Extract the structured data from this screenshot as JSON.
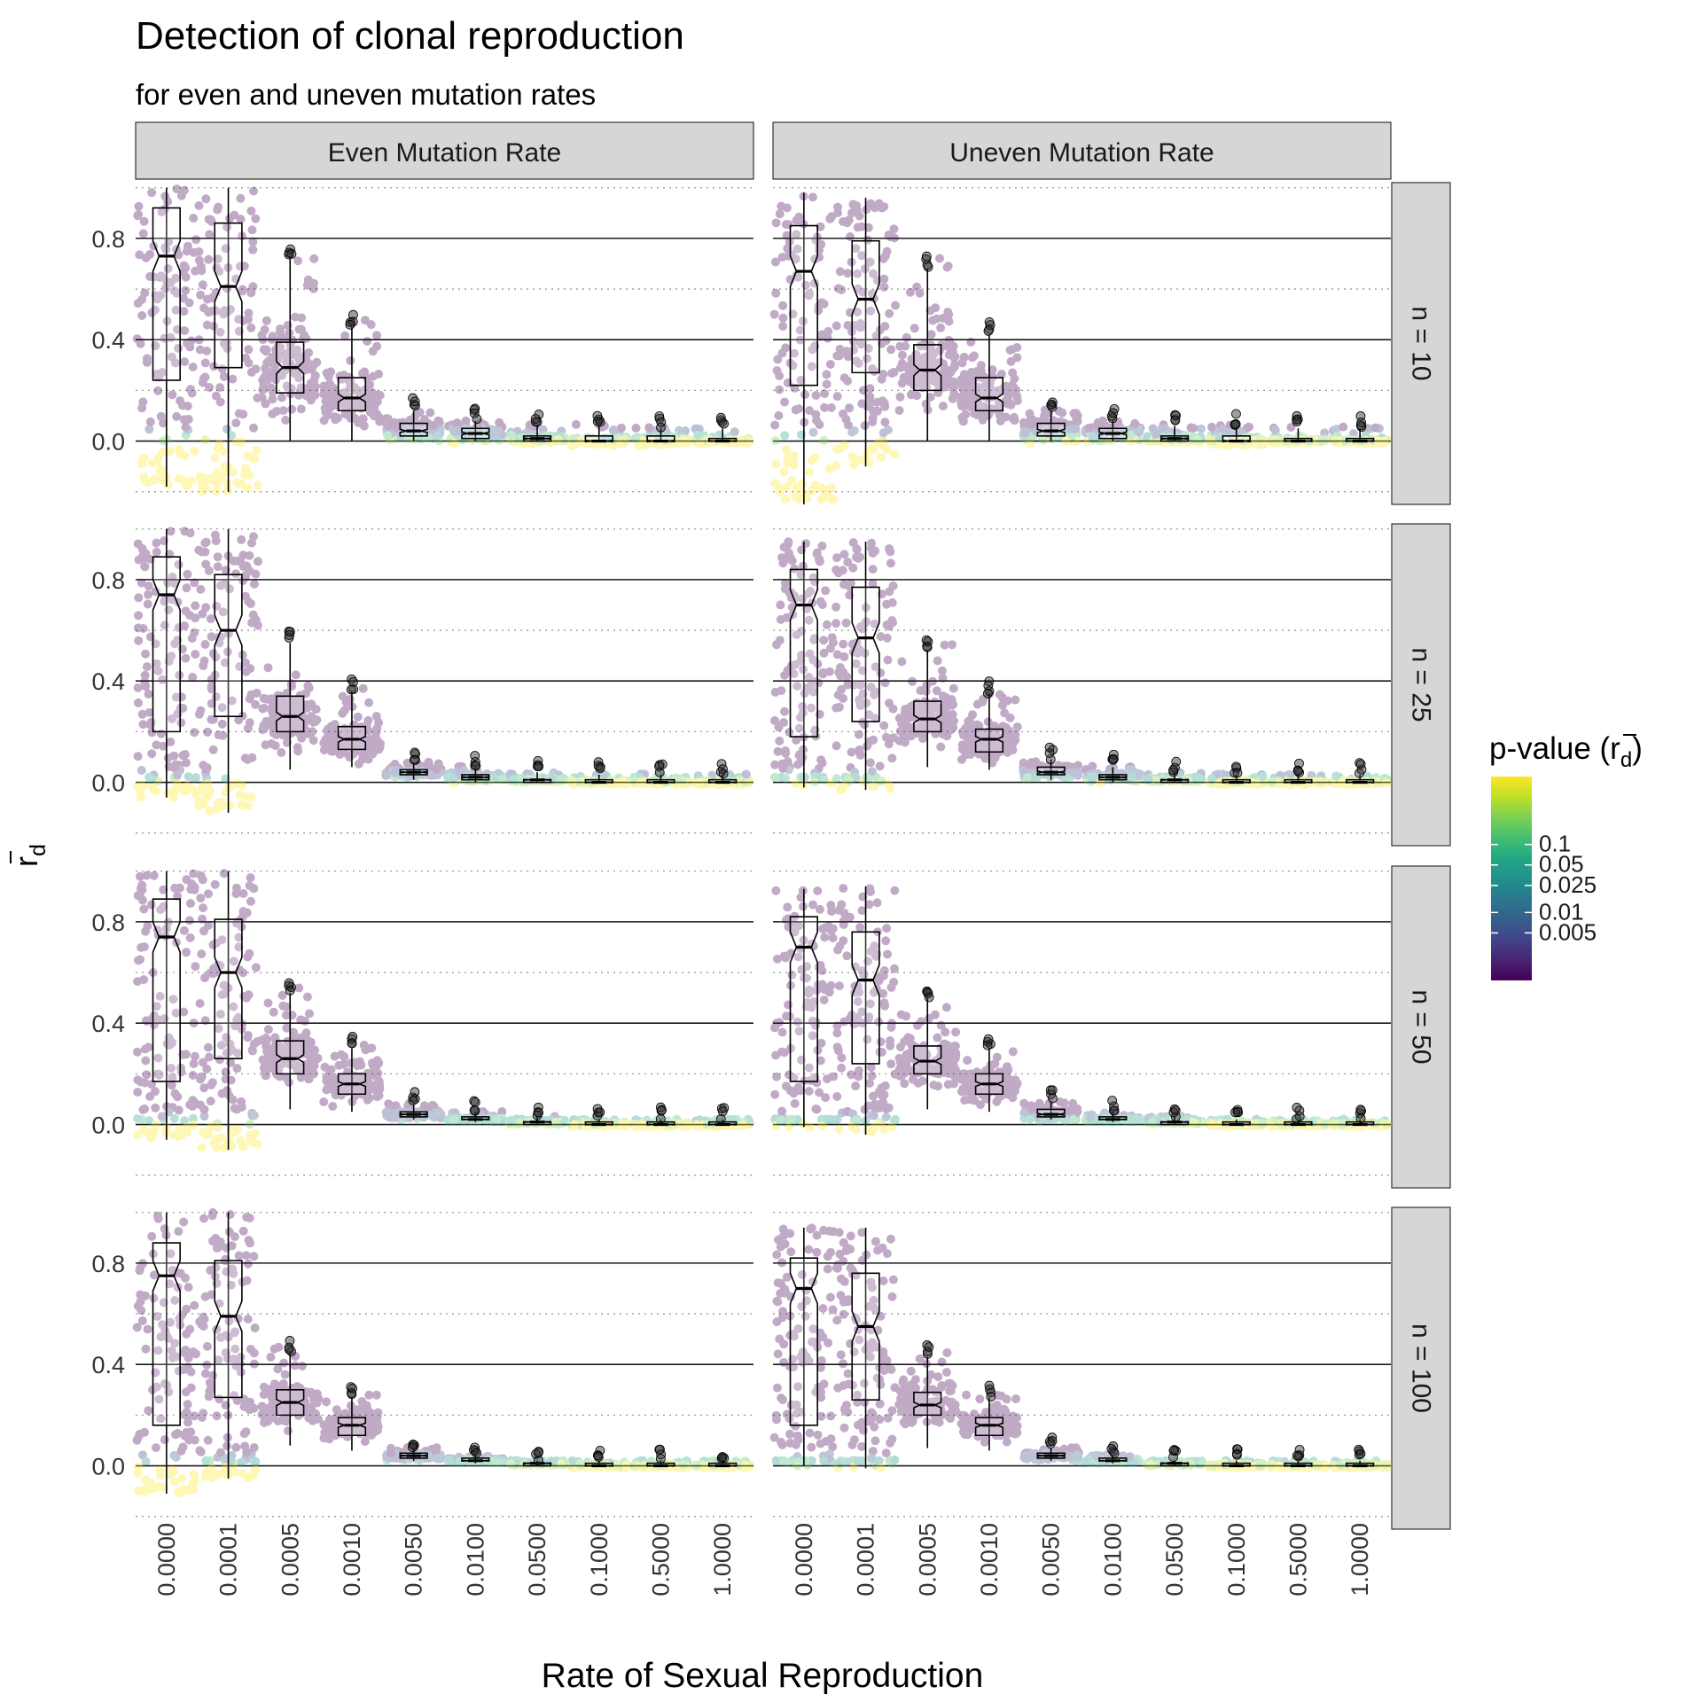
{
  "chart_data": {
    "type": "box",
    "title": "Detection of clonal reproduction",
    "subtitle": "for even and uneven mutation rates",
    "xlabel": "Rate of Sexual Reproduction",
    "ylabel_main": "r",
    "ylabel_sub": "d",
    "legend_title_main": "p-value (r",
    "legend_title_sub": "d",
    "legend_title_end": ")",
    "legend_ticks": [
      "0.1",
      "0.05",
      "0.025",
      "0.01",
      "0.005"
    ],
    "legend_tick_values": [
      0.1,
      0.05,
      0.025,
      0.01,
      0.005
    ],
    "colormap": [
      "#440154",
      "#482475",
      "#414487",
      "#355f8d",
      "#2a788e",
      "#21918c",
      "#22a884",
      "#44bf70",
      "#7ad151",
      "#bddf26",
      "#fde725"
    ],
    "categories": [
      "0.0000",
      "0.0001",
      "0.0005",
      "0.0010",
      "0.0050",
      "0.0100",
      "0.0500",
      "0.1000",
      "0.5000",
      "1.0000"
    ],
    "columns": [
      "Even Mutation Rate",
      "Uneven Mutation Rate"
    ],
    "rows": [
      "n = 10",
      "n = 25",
      "n = 50",
      "n = 100"
    ],
    "y_ticks": [
      "0.0",
      "0.4",
      "0.8"
    ],
    "ylim": [
      -0.25,
      1.02
    ],
    "grid": true,
    "legend_position": "right",
    "panels": [
      {
        "row": 0,
        "col": 0,
        "boxes": [
          [
            -0.18,
            0.24,
            0.73,
            0.92,
            1.0
          ],
          [
            -0.2,
            0.29,
            0.61,
            0.86,
            1.0
          ],
          [
            0.0,
            0.19,
            0.29,
            0.39,
            0.72
          ],
          [
            0.0,
            0.12,
            0.17,
            0.25,
            0.45
          ],
          [
            0.0,
            0.02,
            0.04,
            0.07,
            0.12
          ],
          [
            0.0,
            0.01,
            0.03,
            0.05,
            0.08
          ],
          [
            0.0,
            0.0,
            0.01,
            0.02,
            0.06
          ],
          [
            0.0,
            0.0,
            0.0,
            0.02,
            0.06
          ],
          [
            0.0,
            0.0,
            0.0,
            0.02,
            0.05
          ],
          [
            0.0,
            0.0,
            0.0,
            0.01,
            0.05
          ]
        ]
      },
      {
        "row": 0,
        "col": 1,
        "boxes": [
          [
            -0.25,
            0.22,
            0.67,
            0.85,
            0.98
          ],
          [
            -0.1,
            0.27,
            0.56,
            0.79,
            0.96
          ],
          [
            0.0,
            0.2,
            0.28,
            0.38,
            0.68
          ],
          [
            0.0,
            0.12,
            0.17,
            0.25,
            0.42
          ],
          [
            0.0,
            0.02,
            0.04,
            0.07,
            0.12
          ],
          [
            0.0,
            0.01,
            0.03,
            0.05,
            0.08
          ],
          [
            0.0,
            0.0,
            0.01,
            0.02,
            0.06
          ],
          [
            0.0,
            0.0,
            0.0,
            0.02,
            0.06
          ],
          [
            0.0,
            0.0,
            0.0,
            0.01,
            0.05
          ],
          [
            0.0,
            0.0,
            0.0,
            0.01,
            0.05
          ]
        ]
      },
      {
        "row": 1,
        "col": 0,
        "boxes": [
          [
            -0.06,
            0.2,
            0.74,
            0.89,
            1.0
          ],
          [
            -0.12,
            0.26,
            0.6,
            0.82,
            1.0
          ],
          [
            0.05,
            0.2,
            0.26,
            0.34,
            0.55
          ],
          [
            0.06,
            0.13,
            0.17,
            0.22,
            0.36
          ],
          [
            0.01,
            0.03,
            0.04,
            0.05,
            0.08
          ],
          [
            0.0,
            0.01,
            0.02,
            0.03,
            0.06
          ],
          [
            0.0,
            0.0,
            0.01,
            0.01,
            0.04
          ],
          [
            0.0,
            0.0,
            0.0,
            0.01,
            0.03
          ],
          [
            0.0,
            0.0,
            0.0,
            0.01,
            0.03
          ],
          [
            0.0,
            0.0,
            0.0,
            0.01,
            0.03
          ]
        ]
      },
      {
        "row": 1,
        "col": 1,
        "boxes": [
          [
            -0.02,
            0.18,
            0.7,
            0.84,
            0.95
          ],
          [
            -0.03,
            0.24,
            0.57,
            0.77,
            0.95
          ],
          [
            0.06,
            0.2,
            0.25,
            0.32,
            0.52
          ],
          [
            0.05,
            0.12,
            0.17,
            0.21,
            0.35
          ],
          [
            0.01,
            0.03,
            0.04,
            0.06,
            0.09
          ],
          [
            0.0,
            0.01,
            0.02,
            0.03,
            0.06
          ],
          [
            0.0,
            0.0,
            0.01,
            0.01,
            0.04
          ],
          [
            0.0,
            0.0,
            0.0,
            0.01,
            0.03
          ],
          [
            0.0,
            0.0,
            0.0,
            0.01,
            0.03
          ],
          [
            0.0,
            0.0,
            0.0,
            0.01,
            0.03
          ]
        ]
      },
      {
        "row": 2,
        "col": 0,
        "boxes": [
          [
            -0.06,
            0.17,
            0.74,
            0.89,
            1.0
          ],
          [
            -0.1,
            0.26,
            0.6,
            0.81,
            1.0
          ],
          [
            0.06,
            0.2,
            0.26,
            0.33,
            0.52
          ],
          [
            0.05,
            0.12,
            0.16,
            0.2,
            0.3
          ],
          [
            0.02,
            0.03,
            0.04,
            0.05,
            0.08
          ],
          [
            0.01,
            0.02,
            0.02,
            0.03,
            0.05
          ],
          [
            0.0,
            0.0,
            0.01,
            0.01,
            0.03
          ],
          [
            0.0,
            0.0,
            0.0,
            0.01,
            0.02
          ],
          [
            0.0,
            0.0,
            0.0,
            0.01,
            0.02
          ],
          [
            0.0,
            0.0,
            0.0,
            0.01,
            0.02
          ]
        ]
      },
      {
        "row": 2,
        "col": 1,
        "boxes": [
          [
            -0.01,
            0.17,
            0.7,
            0.82,
            0.93
          ],
          [
            -0.04,
            0.24,
            0.57,
            0.76,
            0.94
          ],
          [
            0.06,
            0.2,
            0.25,
            0.31,
            0.5
          ],
          [
            0.05,
            0.12,
            0.16,
            0.2,
            0.3
          ],
          [
            0.02,
            0.03,
            0.04,
            0.06,
            0.09
          ],
          [
            0.01,
            0.02,
            0.02,
            0.03,
            0.05
          ],
          [
            0.0,
            0.0,
            0.01,
            0.01,
            0.03
          ],
          [
            0.0,
            0.0,
            0.0,
            0.01,
            0.02
          ],
          [
            0.0,
            0.0,
            0.0,
            0.01,
            0.02
          ],
          [
            0.0,
            0.0,
            0.0,
            0.01,
            0.02
          ]
        ]
      },
      {
        "row": 3,
        "col": 0,
        "boxes": [
          [
            -0.11,
            0.16,
            0.75,
            0.88,
            1.0
          ],
          [
            -0.05,
            0.27,
            0.59,
            0.81,
            1.0
          ],
          [
            0.08,
            0.2,
            0.25,
            0.3,
            0.45
          ],
          [
            0.06,
            0.12,
            0.16,
            0.19,
            0.27
          ],
          [
            0.02,
            0.03,
            0.04,
            0.05,
            0.07
          ],
          [
            0.01,
            0.02,
            0.02,
            0.03,
            0.04
          ],
          [
            0.0,
            0.0,
            0.01,
            0.01,
            0.02
          ],
          [
            0.0,
            0.0,
            0.0,
            0.01,
            0.02
          ],
          [
            0.0,
            0.0,
            0.0,
            0.01,
            0.02
          ],
          [
            0.0,
            0.0,
            0.0,
            0.01,
            0.02
          ]
        ]
      },
      {
        "row": 3,
        "col": 1,
        "boxes": [
          [
            0.0,
            0.16,
            0.7,
            0.82,
            0.94
          ],
          [
            -0.01,
            0.26,
            0.55,
            0.76,
            0.94
          ],
          [
            0.07,
            0.2,
            0.24,
            0.29,
            0.43
          ],
          [
            0.06,
            0.12,
            0.16,
            0.19,
            0.27
          ],
          [
            0.02,
            0.03,
            0.04,
            0.05,
            0.07
          ],
          [
            0.01,
            0.02,
            0.02,
            0.03,
            0.04
          ],
          [
            0.0,
            0.0,
            0.01,
            0.01,
            0.02
          ],
          [
            0.0,
            0.0,
            0.0,
            0.01,
            0.02
          ],
          [
            0.0,
            0.0,
            0.0,
            0.01,
            0.02
          ],
          [
            0.0,
            0.0,
            0.0,
            0.01,
            0.02
          ]
        ]
      }
    ]
  }
}
